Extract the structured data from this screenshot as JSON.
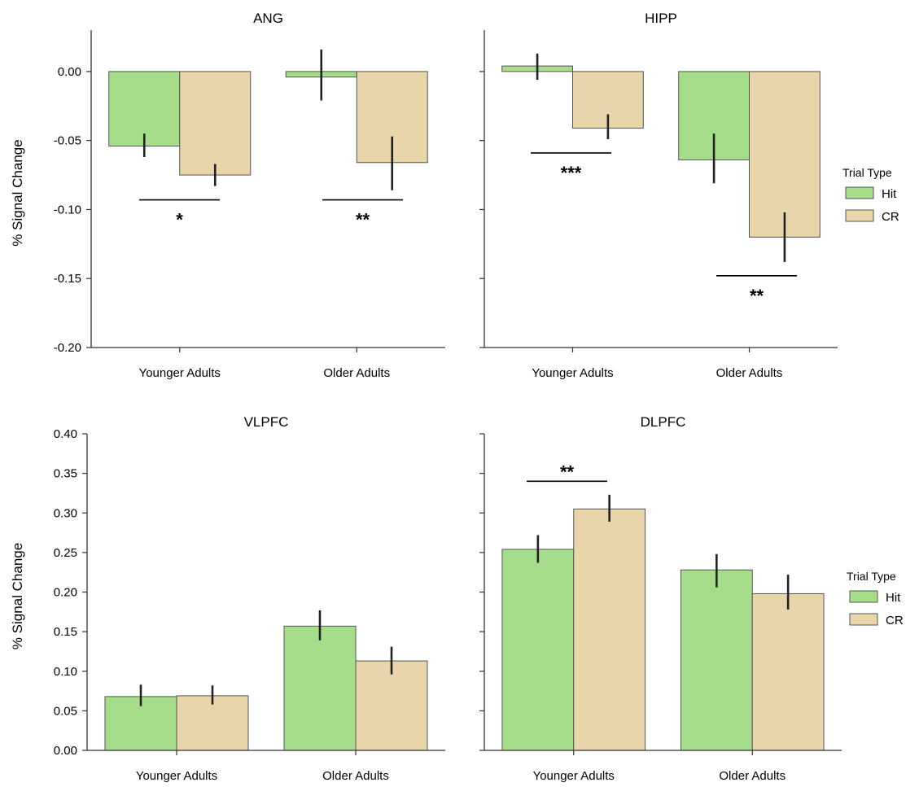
{
  "colors": {
    "hit": "#a6dd8b",
    "cr": "#e8d5a9",
    "edge": "#555555",
    "err": "#222222",
    "axis": "#333333"
  },
  "legends": [
    {
      "title": "Trial Type",
      "items": [
        "Hit",
        "CR"
      ]
    },
    {
      "title": "Trial Type",
      "items": [
        "Hit",
        "CR"
      ]
    }
  ],
  "chart_data": [
    {
      "type": "bar",
      "title": "ANG",
      "ylabel": "% Signal Change",
      "xlabel": "",
      "categories": [
        "Younger Adults",
        "Older Adults"
      ],
      "ylim": [
        -0.2,
        0.03
      ],
      "yticks": [
        0.0,
        -0.05,
        -0.1,
        -0.15,
        -0.2
      ],
      "ytick_labels": [
        "0.00",
        "-0.05",
        "-0.10",
        "-0.15",
        "-0.20"
      ],
      "series": [
        {
          "name": "Hit",
          "values": [
            -0.054,
            -0.004
          ],
          "err_low": [
            -0.062,
            -0.021
          ],
          "err_high": [
            -0.045,
            0.016
          ]
        },
        {
          "name": "CR",
          "values": [
            -0.075,
            -0.066
          ],
          "err_low": [
            -0.083,
            -0.086
          ],
          "err_high": [
            -0.067,
            -0.047
          ]
        }
      ],
      "significance": [
        {
          "category": 0,
          "y": -0.093,
          "stars": "*"
        },
        {
          "category": 1,
          "y": -0.093,
          "stars": "**"
        }
      ]
    },
    {
      "type": "bar",
      "title": "HIPP",
      "ylabel": "",
      "xlabel": "",
      "categories": [
        "Younger Adults",
        "Older Adults"
      ],
      "ylim": [
        -0.2,
        0.03
      ],
      "yticks": [
        0.0,
        -0.05,
        -0.1,
        -0.15,
        -0.2
      ],
      "ytick_labels": [
        "",
        "",
        "",
        "",
        ""
      ],
      "series": [
        {
          "name": "Hit",
          "values": [
            0.004,
            -0.064
          ],
          "err_low": [
            -0.006,
            -0.081
          ],
          "err_high": [
            0.013,
            -0.045
          ]
        },
        {
          "name": "CR",
          "values": [
            -0.041,
            -0.12
          ],
          "err_low": [
            -0.049,
            -0.138
          ],
          "err_high": [
            -0.031,
            -0.102
          ]
        }
      ],
      "significance": [
        {
          "category": 0,
          "y": -0.059,
          "stars": "***"
        },
        {
          "category": 1,
          "y": -0.148,
          "stars": "**"
        }
      ]
    },
    {
      "type": "bar",
      "title": "VLPFC",
      "ylabel": "% Signal Change",
      "xlabel": "",
      "categories": [
        "Younger Adults",
        "Older Adults"
      ],
      "ylim": [
        0,
        0.4
      ],
      "yticks": [
        0.0,
        0.05,
        0.1,
        0.15,
        0.2,
        0.25,
        0.3,
        0.35,
        0.4
      ],
      "ytick_labels": [
        "0.00",
        "0.05",
        "0.10",
        "0.15",
        "0.20",
        "0.25",
        "0.30",
        "0.35",
        "0.40"
      ],
      "series": [
        {
          "name": "Hit",
          "values": [
            0.068,
            0.157
          ],
          "err_low": [
            0.056,
            0.139
          ],
          "err_high": [
            0.083,
            0.177
          ]
        },
        {
          "name": "CR",
          "values": [
            0.069,
            0.113
          ],
          "err_low": [
            0.058,
            0.096
          ],
          "err_high": [
            0.082,
            0.131
          ]
        }
      ],
      "significance": []
    },
    {
      "type": "bar",
      "title": "DLPFC",
      "ylabel": "",
      "xlabel": "",
      "categories": [
        "Younger Adults",
        "Older Adults"
      ],
      "ylim": [
        0,
        0.4
      ],
      "yticks": [
        0.0,
        0.05,
        0.1,
        0.15,
        0.2,
        0.25,
        0.3,
        0.35,
        0.4
      ],
      "ytick_labels": [
        "",
        "",
        "",
        "",
        "",
        "",
        "",
        "",
        ""
      ],
      "series": [
        {
          "name": "Hit",
          "values": [
            0.254,
            0.228
          ],
          "err_low": [
            0.237,
            0.206
          ],
          "err_high": [
            0.272,
            0.248
          ]
        },
        {
          "name": "CR",
          "values": [
            0.305,
            0.198
          ],
          "err_low": [
            0.289,
            0.178
          ],
          "err_high": [
            0.323,
            0.222
          ]
        }
      ],
      "significance": [
        {
          "category": 0,
          "y": 0.34,
          "stars": "**"
        }
      ]
    }
  ]
}
